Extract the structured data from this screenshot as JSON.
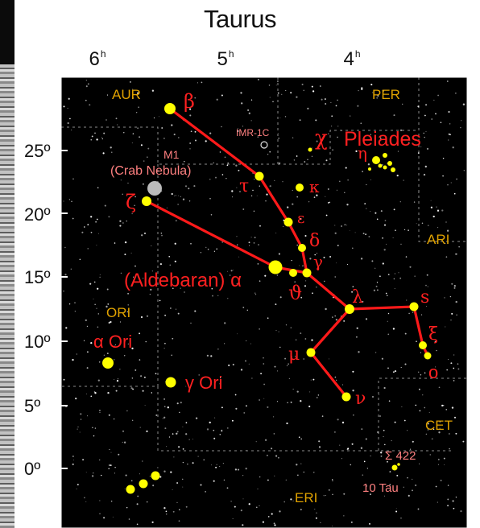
{
  "title": "Taurus",
  "ra_labels": {
    "h6": "6",
    "h5": "5",
    "h4": "4",
    "hour_mark": "h"
  },
  "dec_labels": {
    "d25": "25º",
    "d20": "20º",
    "d15": "15º",
    "d10": "10º",
    "d5": "5º",
    "d0": "0º"
  },
  "neighbors": {
    "aur": "AUR",
    "per": "PER",
    "ari": "ARI",
    "ori": "ORI",
    "cet": "CET",
    "eri": "ERI"
  },
  "stars": {
    "beta": "β",
    "tau": "τ",
    "kappa": "κ",
    "epsilon": "ε",
    "delta": "δ",
    "gamma": "γ",
    "theta": "ϑ",
    "zeta": "ζ",
    "aldebaran": "(Aldebaran) α",
    "lambda": "λ",
    "mu": "μ",
    "nu": "ν",
    "xi": "ξ",
    "omicron": "o",
    "s": "s",
    "chi": "χ",
    "eta": "η"
  },
  "objects": {
    "m1_line1": "M1",
    "m1_line2": "(Crab Nebula)",
    "ic": "IMR-1C",
    "pleiades": "Pleiades",
    "alpha_ori": "α Ori",
    "gamma_ori": "γ Ori",
    "sigma422": "Σ 422",
    "ten_tau": "10 Tau"
  },
  "colors": {
    "sky": "#000000",
    "star_fill": "#ffff00",
    "line": "#ff1a1a",
    "greek_label": "#ff2020",
    "constellation_label": "#e0a200",
    "object_label": "#ff8080",
    "nebula": "#bbbbbb"
  }
}
